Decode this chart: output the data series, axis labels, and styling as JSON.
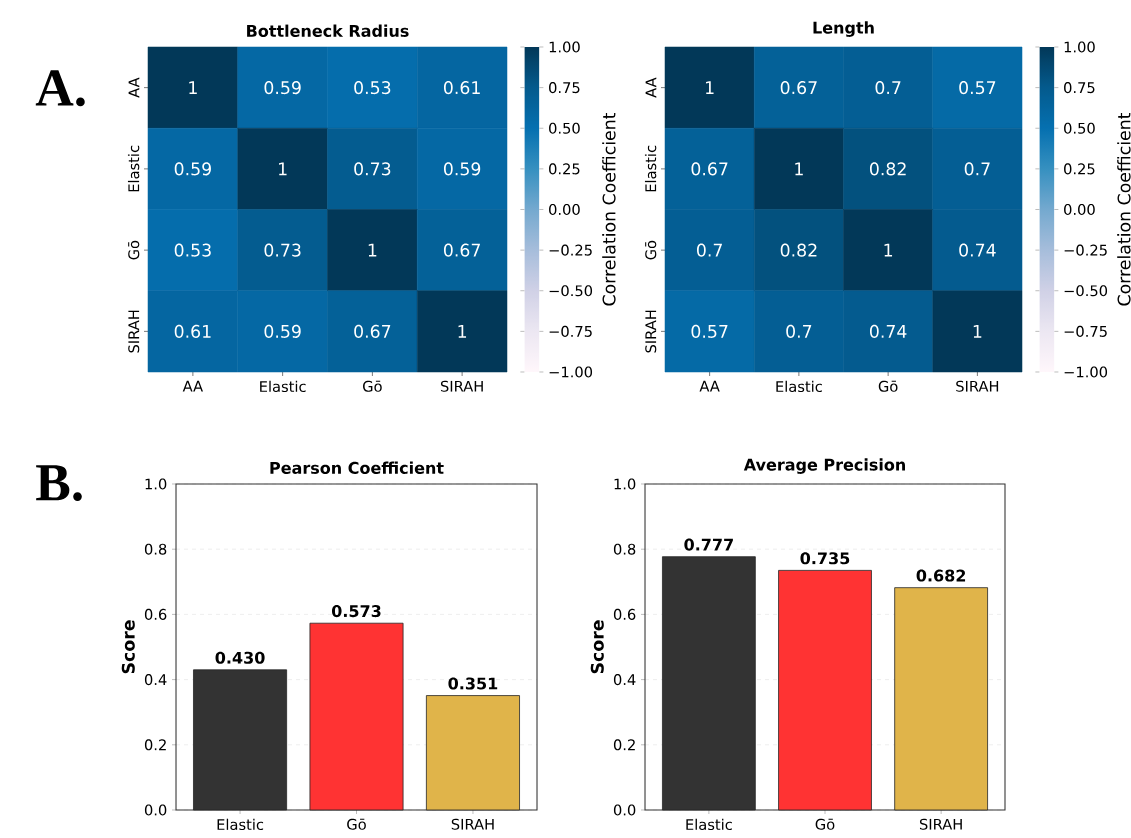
{
  "chart_data": [
    {
      "type": "heatmap",
      "title": "Bottleneck Radius",
      "annotations": [
        "A."
      ],
      "categories": [
        "AA",
        "Elastic",
        "Gō",
        "SIRAH"
      ],
      "y_categories": [
        "AA",
        "Elastic",
        "Gō",
        "SIRAH"
      ],
      "cells": [
        [
          1,
          0.59,
          0.53,
          0.61
        ],
        [
          0.59,
          1,
          0.73,
          0.59
        ],
        [
          0.53,
          0.73,
          1,
          0.67
        ],
        [
          0.61,
          0.59,
          0.67,
          1
        ]
      ],
      "data_labels": true,
      "clabel": "Correlation Coefficient",
      "clim": [
        -1,
        1
      ],
      "cticks": [
        {
          "value": -1,
          "label": "−1.00"
        },
        {
          "value": -0.75,
          "label": "−0.75"
        },
        {
          "value": -0.5,
          "label": "−0.50"
        },
        {
          "value": -0.25,
          "label": "−0.25"
        },
        {
          "value": 0,
          "label": "0.00"
        },
        {
          "value": 0.25,
          "label": "0.25"
        },
        {
          "value": 0.5,
          "label": "0.50"
        },
        {
          "value": 0.75,
          "label": "0.75"
        },
        {
          "value": 1,
          "label": "1.00"
        }
      ]
    },
    {
      "type": "heatmap",
      "title": "Length",
      "categories": [
        "AA",
        "Elastic",
        "Gō",
        "SIRAH"
      ],
      "y_categories": [
        "AA",
        "Elastic",
        "Gō",
        "SIRAH"
      ],
      "cells": [
        [
          1,
          0.67,
          0.7,
          0.57
        ],
        [
          0.67,
          1,
          0.82,
          0.7
        ],
        [
          0.7,
          0.82,
          1,
          0.74
        ],
        [
          0.57,
          0.7,
          0.74,
          1
        ]
      ],
      "data_labels": true,
      "clabel": "Correlation Coefficient",
      "clim": [
        -1,
        1
      ],
      "cticks": [
        {
          "value": -1,
          "label": "−1.00"
        },
        {
          "value": -0.75,
          "label": "−0.75"
        },
        {
          "value": -0.5,
          "label": "−0.50"
        },
        {
          "value": -0.25,
          "label": "−0.25"
        },
        {
          "value": 0,
          "label": "0.00"
        },
        {
          "value": 0.25,
          "label": "0.25"
        },
        {
          "value": 0.5,
          "label": "0.50"
        },
        {
          "value": 0.75,
          "label": "0.75"
        },
        {
          "value": 1,
          "label": "1.00"
        }
      ]
    },
    {
      "type": "bar",
      "title": "Pearson Coefficient",
      "annotations": [
        "B."
      ],
      "ylabel": "Score",
      "categories": [
        "Elastic",
        "Gō",
        "SIRAH"
      ],
      "values": [
        0.43,
        0.573,
        0.351
      ],
      "value_labels": [
        "0.430",
        "0.573",
        "0.351"
      ],
      "colors": [
        "#333333",
        "#ff3333",
        "#e0b44a"
      ],
      "ylim": [
        0,
        1
      ],
      "yticks": [
        {
          "value": 0,
          "label": "0.0"
        },
        {
          "value": 0.2,
          "label": "0.2"
        },
        {
          "value": 0.4,
          "label": "0.4"
        },
        {
          "value": 0.6,
          "label": "0.6"
        },
        {
          "value": 0.8,
          "label": "0.8"
        },
        {
          "value": 1,
          "label": "1.0"
        }
      ],
      "grid": "y"
    },
    {
      "type": "bar",
      "title": "Average Precision",
      "ylabel": "Score",
      "categories": [
        "Elastic",
        "Gō",
        "SIRAH"
      ],
      "values": [
        0.777,
        0.735,
        0.682
      ],
      "value_labels": [
        "0.777",
        "0.735",
        "0.682"
      ],
      "colors": [
        "#333333",
        "#ff3333",
        "#e0b44a"
      ],
      "ylim": [
        0,
        1
      ],
      "yticks": [
        {
          "value": 0,
          "label": "0.0"
        },
        {
          "value": 0.2,
          "label": "0.2"
        },
        {
          "value": 0.4,
          "label": "0.4"
        },
        {
          "value": 0.6,
          "label": "0.6"
        },
        {
          "value": 0.8,
          "label": "0.8"
        },
        {
          "value": 1,
          "label": "1.0"
        }
      ],
      "grid": "y"
    }
  ]
}
